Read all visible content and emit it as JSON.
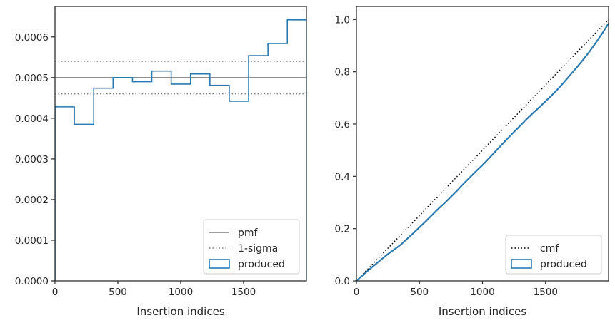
{
  "chart_data": [
    {
      "type": "histogram",
      "xlabel": "Insertion indices",
      "ylabel": "",
      "xlim": [
        0,
        2000
      ],
      "ylim": [
        0,
        0.000675
      ],
      "x_ticks": [
        0,
        500,
        1000,
        1500
      ],
      "x_tick_labels": [
        "0",
        "500",
        "1000",
        "1500"
      ],
      "y_ticks": [
        0,
        0.0001,
        0.0002,
        0.0003,
        0.0004,
        0.0005,
        0.0006
      ],
      "y_tick_labels": [
        "0.0000",
        "0.0001",
        "0.0002",
        "0.0003",
        "0.0004",
        "0.0005",
        "0.0006"
      ],
      "bin_edges": [
        0,
        154,
        308,
        462,
        616,
        770,
        924,
        1078,
        1232,
        1386,
        1540,
        1694,
        1848,
        2000
      ],
      "values": [
        0.000428,
        0.000385,
        0.000474,
        0.0005,
        0.00049,
        0.000516,
        0.000484,
        0.000509,
        0.000481,
        0.000442,
        0.000554,
        0.000584,
        0.000642
      ],
      "reference_lines": [
        {
          "name": "pmf",
          "y": 0.0005,
          "style": "solid",
          "color": "#808080"
        },
        {
          "name": "1-sigma",
          "y": [
            0.00046,
            0.00054
          ],
          "style": "dotted",
          "color": "#808080"
        }
      ],
      "series_color": "#2a7ab0",
      "legend": {
        "placement": "lower right",
        "entries": [
          {
            "label": "pmf",
            "style": "solid-line",
            "color": "#808080"
          },
          {
            "label": "1-sigma",
            "style": "dotted-line",
            "color": "#808080"
          },
          {
            "label": "produced",
            "style": "box",
            "color": "#2a7ab0"
          }
        ]
      }
    },
    {
      "type": "line",
      "xlabel": "Insertion indices",
      "ylabel": "",
      "xlim": [
        0,
        2000
      ],
      "ylim": [
        0,
        1.05
      ],
      "x_ticks": [
        0,
        500,
        1000,
        1500
      ],
      "x_tick_labels": [
        "0",
        "500",
        "1000",
        "1500"
      ],
      "y_ticks": [
        0,
        0.2,
        0.4,
        0.6,
        0.8,
        1.0
      ],
      "y_tick_labels": [
        "0.0",
        "0.2",
        "0.4",
        "0.6",
        "0.8",
        "1.0"
      ],
      "series": [
        {
          "name": "cmf",
          "style": "dotted",
          "color": "#000000",
          "x": [
            0,
            2000
          ],
          "y": [
            0,
            1.0
          ]
        },
        {
          "name": "produced",
          "style": "solid",
          "color": "#2a7ab0",
          "x": [
            0,
            50,
            100,
            150,
            200,
            250,
            300,
            350,
            400,
            450,
            500,
            550,
            600,
            650,
            700,
            750,
            800,
            850,
            900,
            950,
            1000,
            1050,
            1100,
            1150,
            1200,
            1250,
            1300,
            1350,
            1400,
            1450,
            1500,
            1550,
            1600,
            1650,
            1700,
            1750,
            1800,
            1850,
            1900,
            1950,
            2000
          ],
          "y": [
            0,
            0.022,
            0.043,
            0.063,
            0.083,
            0.103,
            0.12,
            0.138,
            0.16,
            0.182,
            0.205,
            0.228,
            0.252,
            0.276,
            0.298,
            0.322,
            0.346,
            0.372,
            0.396,
            0.42,
            0.443,
            0.468,
            0.494,
            0.52,
            0.545,
            0.57,
            0.594,
            0.619,
            0.642,
            0.664,
            0.687,
            0.71,
            0.735,
            0.762,
            0.79,
            0.818,
            0.847,
            0.878,
            0.912,
            0.947,
            0.985
          ]
        }
      ],
      "legend": {
        "placement": "lower right",
        "entries": [
          {
            "label": "cmf",
            "style": "dotted-line",
            "color": "#000000"
          },
          {
            "label": "produced",
            "style": "box",
            "color": "#2a7ab0"
          }
        ]
      }
    }
  ]
}
